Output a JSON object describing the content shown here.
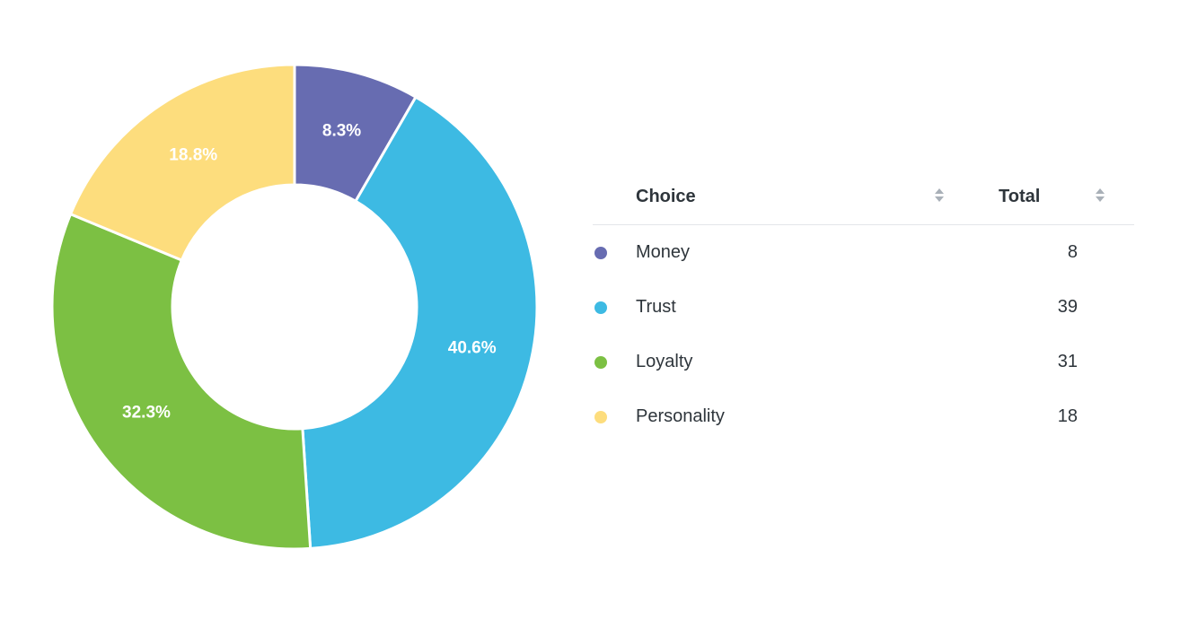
{
  "chart_data": {
    "type": "pie",
    "donut": true,
    "table_headers": {
      "choice": "Choice",
      "total": "Total"
    },
    "slices": [
      {
        "label": "Money",
        "value": 8,
        "percent_label": "8.3%",
        "color": "#676cb1"
      },
      {
        "label": "Trust",
        "value": 39,
        "percent_label": "40.6%",
        "color": "#3dbae3"
      },
      {
        "label": "Loyalty",
        "value": 31,
        "percent_label": "32.3%",
        "color": "#7cc043"
      },
      {
        "label": "Personality",
        "value": 18,
        "percent_label": "18.8%",
        "color": "#fddd7d"
      }
    ]
  }
}
